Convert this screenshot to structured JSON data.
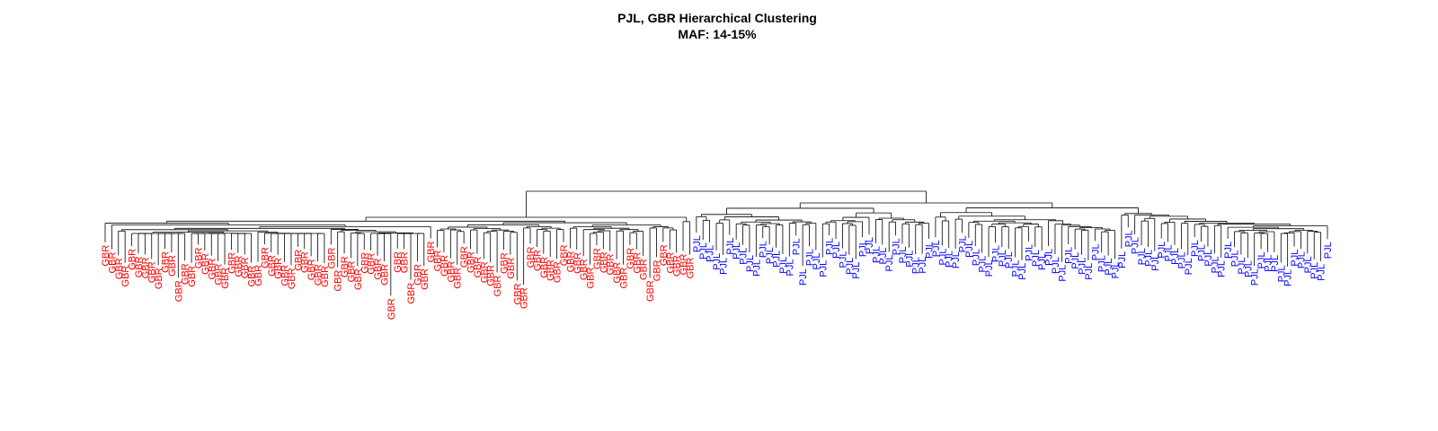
{
  "chart_data": {
    "type": "dendrogram",
    "title": "PJL, GBR Hierarchical Clustering",
    "subtitle": "MAF: 14-15%",
    "xlabel": "",
    "ylabel": "",
    "axes": "none",
    "grid": false,
    "legend": "none",
    "groups": [
      {
        "label": "GBR",
        "color": "#ff0000",
        "count": 89
      },
      {
        "label": "PJL",
        "color": "#0000ff",
        "count": 96
      }
    ],
    "root_merge_height": 1.0,
    "top_level_clusters": [
      "GBR",
      "PJL"
    ]
  }
}
